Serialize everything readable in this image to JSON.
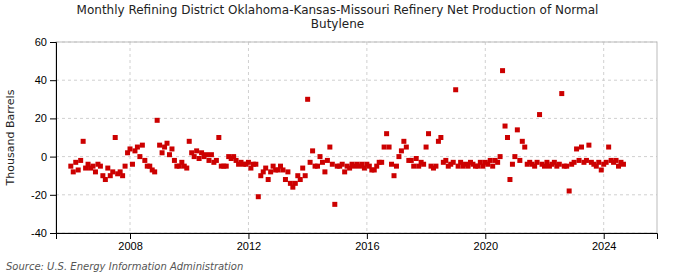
{
  "chart_data": {
    "type": "scatter",
    "title": "Monthly Refining District Oklahoma-Kansas-Missouri Refinery Net Production of Normal\nButylene",
    "ylabel": "Thousand Barrels",
    "annotation": "Source: U.S. Energy Information Administration",
    "color": "#cc0000",
    "marker": "square",
    "grid": true,
    "xlim": [
      2005.5,
      2025.8
    ],
    "xticks": [
      2008,
      2012,
      2016,
      2020,
      2024
    ],
    "ylim": [
      -40,
      60
    ],
    "yticks": [
      -40,
      -20,
      0,
      20,
      40,
      60
    ],
    "x": [
      2006.0,
      2006.083,
      2006.167,
      2006.25,
      2006.333,
      2006.417,
      2006.5,
      2006.583,
      2006.667,
      2006.75,
      2006.833,
      2006.917,
      2007.0,
      2007.083,
      2007.167,
      2007.25,
      2007.333,
      2007.417,
      2007.5,
      2007.583,
      2007.667,
      2007.75,
      2007.833,
      2007.917,
      2008.0,
      2008.083,
      2008.167,
      2008.25,
      2008.333,
      2008.417,
      2008.5,
      2008.583,
      2008.667,
      2008.75,
      2008.833,
      2008.917,
      2009.0,
      2009.083,
      2009.167,
      2009.25,
      2009.333,
      2009.417,
      2009.5,
      2009.583,
      2009.667,
      2009.75,
      2009.833,
      2009.917,
      2010.0,
      2010.083,
      2010.167,
      2010.25,
      2010.333,
      2010.417,
      2010.5,
      2010.583,
      2010.667,
      2010.75,
      2010.833,
      2010.917,
      2011.0,
      2011.083,
      2011.167,
      2011.25,
      2011.333,
      2011.417,
      2011.5,
      2011.583,
      2011.667,
      2011.75,
      2011.833,
      2011.917,
      2012.0,
      2012.083,
      2012.167,
      2012.25,
      2012.333,
      2012.417,
      2012.5,
      2012.583,
      2012.667,
      2012.75,
      2012.833,
      2012.917,
      2013.0,
      2013.083,
      2013.167,
      2013.25,
      2013.333,
      2013.417,
      2013.5,
      2013.583,
      2013.667,
      2013.75,
      2013.833,
      2013.917,
      2014.0,
      2014.083,
      2014.167,
      2014.25,
      2014.333,
      2014.417,
      2014.5,
      2014.583,
      2014.667,
      2014.75,
      2014.833,
      2014.917,
      2015.0,
      2015.083,
      2015.167,
      2015.25,
      2015.333,
      2015.417,
      2015.5,
      2015.583,
      2015.667,
      2015.75,
      2015.833,
      2015.917,
      2016.0,
      2016.083,
      2016.167,
      2016.25,
      2016.333,
      2016.417,
      2016.5,
      2016.583,
      2016.667,
      2016.75,
      2016.833,
      2016.917,
      2017.0,
      2017.083,
      2017.167,
      2017.25,
      2017.333,
      2017.417,
      2017.5,
      2017.583,
      2017.667,
      2017.75,
      2017.833,
      2017.917,
      2018.0,
      2018.083,
      2018.167,
      2018.25,
      2018.333,
      2018.417,
      2018.5,
      2018.583,
      2018.667,
      2018.75,
      2018.833,
      2018.917,
      2019.0,
      2019.083,
      2019.167,
      2019.25,
      2019.333,
      2019.417,
      2019.5,
      2019.583,
      2019.667,
      2019.75,
      2019.833,
      2019.917,
      2020.0,
      2020.083,
      2020.167,
      2020.25,
      2020.333,
      2020.417,
      2020.5,
      2020.583,
      2020.667,
      2020.75,
      2020.833,
      2020.917,
      2021.0,
      2021.083,
      2021.167,
      2021.25,
      2021.333,
      2021.417,
      2021.5,
      2021.583,
      2021.667,
      2021.75,
      2021.833,
      2021.917,
      2022.0,
      2022.083,
      2022.167,
      2022.25,
      2022.333,
      2022.417,
      2022.5,
      2022.583,
      2022.667,
      2022.75,
      2022.833,
      2022.917,
      2023.0,
      2023.083,
      2023.167,
      2023.25,
      2023.333,
      2023.417,
      2023.5,
      2023.583,
      2023.667,
      2023.75,
      2023.833,
      2023.917,
      2024.0,
      2024.083,
      2024.167,
      2024.25,
      2024.333,
      2024.417,
      2024.5,
      2024.583,
      2024.667
    ],
    "values": [
      -5,
      -8,
      -3,
      -7,
      -2,
      8,
      -6,
      -4,
      -6,
      -5,
      -8,
      -4,
      -5,
      -10,
      -12,
      -6,
      -10,
      -8,
      10,
      -9,
      -8,
      -10,
      -5,
      2,
      4,
      -4,
      3,
      5,
      0,
      6,
      -2,
      -5,
      -5,
      -7,
      -8,
      19,
      6,
      2,
      5,
      7,
      1,
      4,
      -2,
      -5,
      -5,
      -3,
      -5,
      -6,
      8,
      2,
      0,
      3,
      -1,
      2,
      0,
      1,
      -2,
      1,
      -3,
      -2,
      10,
      -5,
      -5,
      -5,
      0,
      -1,
      0,
      -2,
      -4,
      -3,
      -4,
      -4,
      -3,
      -6,
      -4,
      -4,
      -21,
      -10,
      -8,
      -6,
      -12,
      -8,
      -5,
      -7,
      -7,
      -5,
      -7,
      -12,
      -8,
      -14,
      -16,
      -14,
      -10,
      -12,
      -6,
      -10,
      30,
      -3,
      3,
      -5,
      -5,
      0,
      -3,
      -8,
      -2,
      5,
      -4,
      -25,
      -5,
      -5,
      -4,
      -8,
      -5,
      -6,
      -4,
      -5,
      -4,
      -5,
      -4,
      -6,
      -4,
      -5,
      -7,
      -7,
      -5,
      -3,
      -3,
      5,
      12,
      5,
      -4,
      -10,
      -5,
      0,
      3,
      8,
      5,
      -2,
      -2,
      -5,
      -1,
      -5,
      -3,
      -4,
      5,
      12,
      -5,
      -6,
      -5,
      8,
      10,
      -3,
      -2,
      -5,
      -4,
      -3,
      35,
      -5,
      -3,
      -5,
      -4,
      -5,
      -3,
      -4,
      -5,
      -5,
      -3,
      -5,
      -3,
      -4,
      -2,
      -5,
      -2,
      -3,
      0,
      45,
      16,
      10,
      -12,
      -4,
      0,
      14,
      -2,
      8,
      5,
      -4,
      -3,
      -4,
      -5,
      -3,
      22,
      -4,
      -5,
      -3,
      -5,
      -4,
      -3,
      -5,
      -4,
      33,
      -5,
      -5,
      -18,
      -4,
      -3,
      4,
      -2,
      5,
      -3,
      -2,
      6,
      -3,
      -4,
      -5,
      -3,
      -7,
      -4,
      -3,
      5,
      -2,
      -3,
      -2,
      -5,
      -3,
      -4
    ]
  }
}
